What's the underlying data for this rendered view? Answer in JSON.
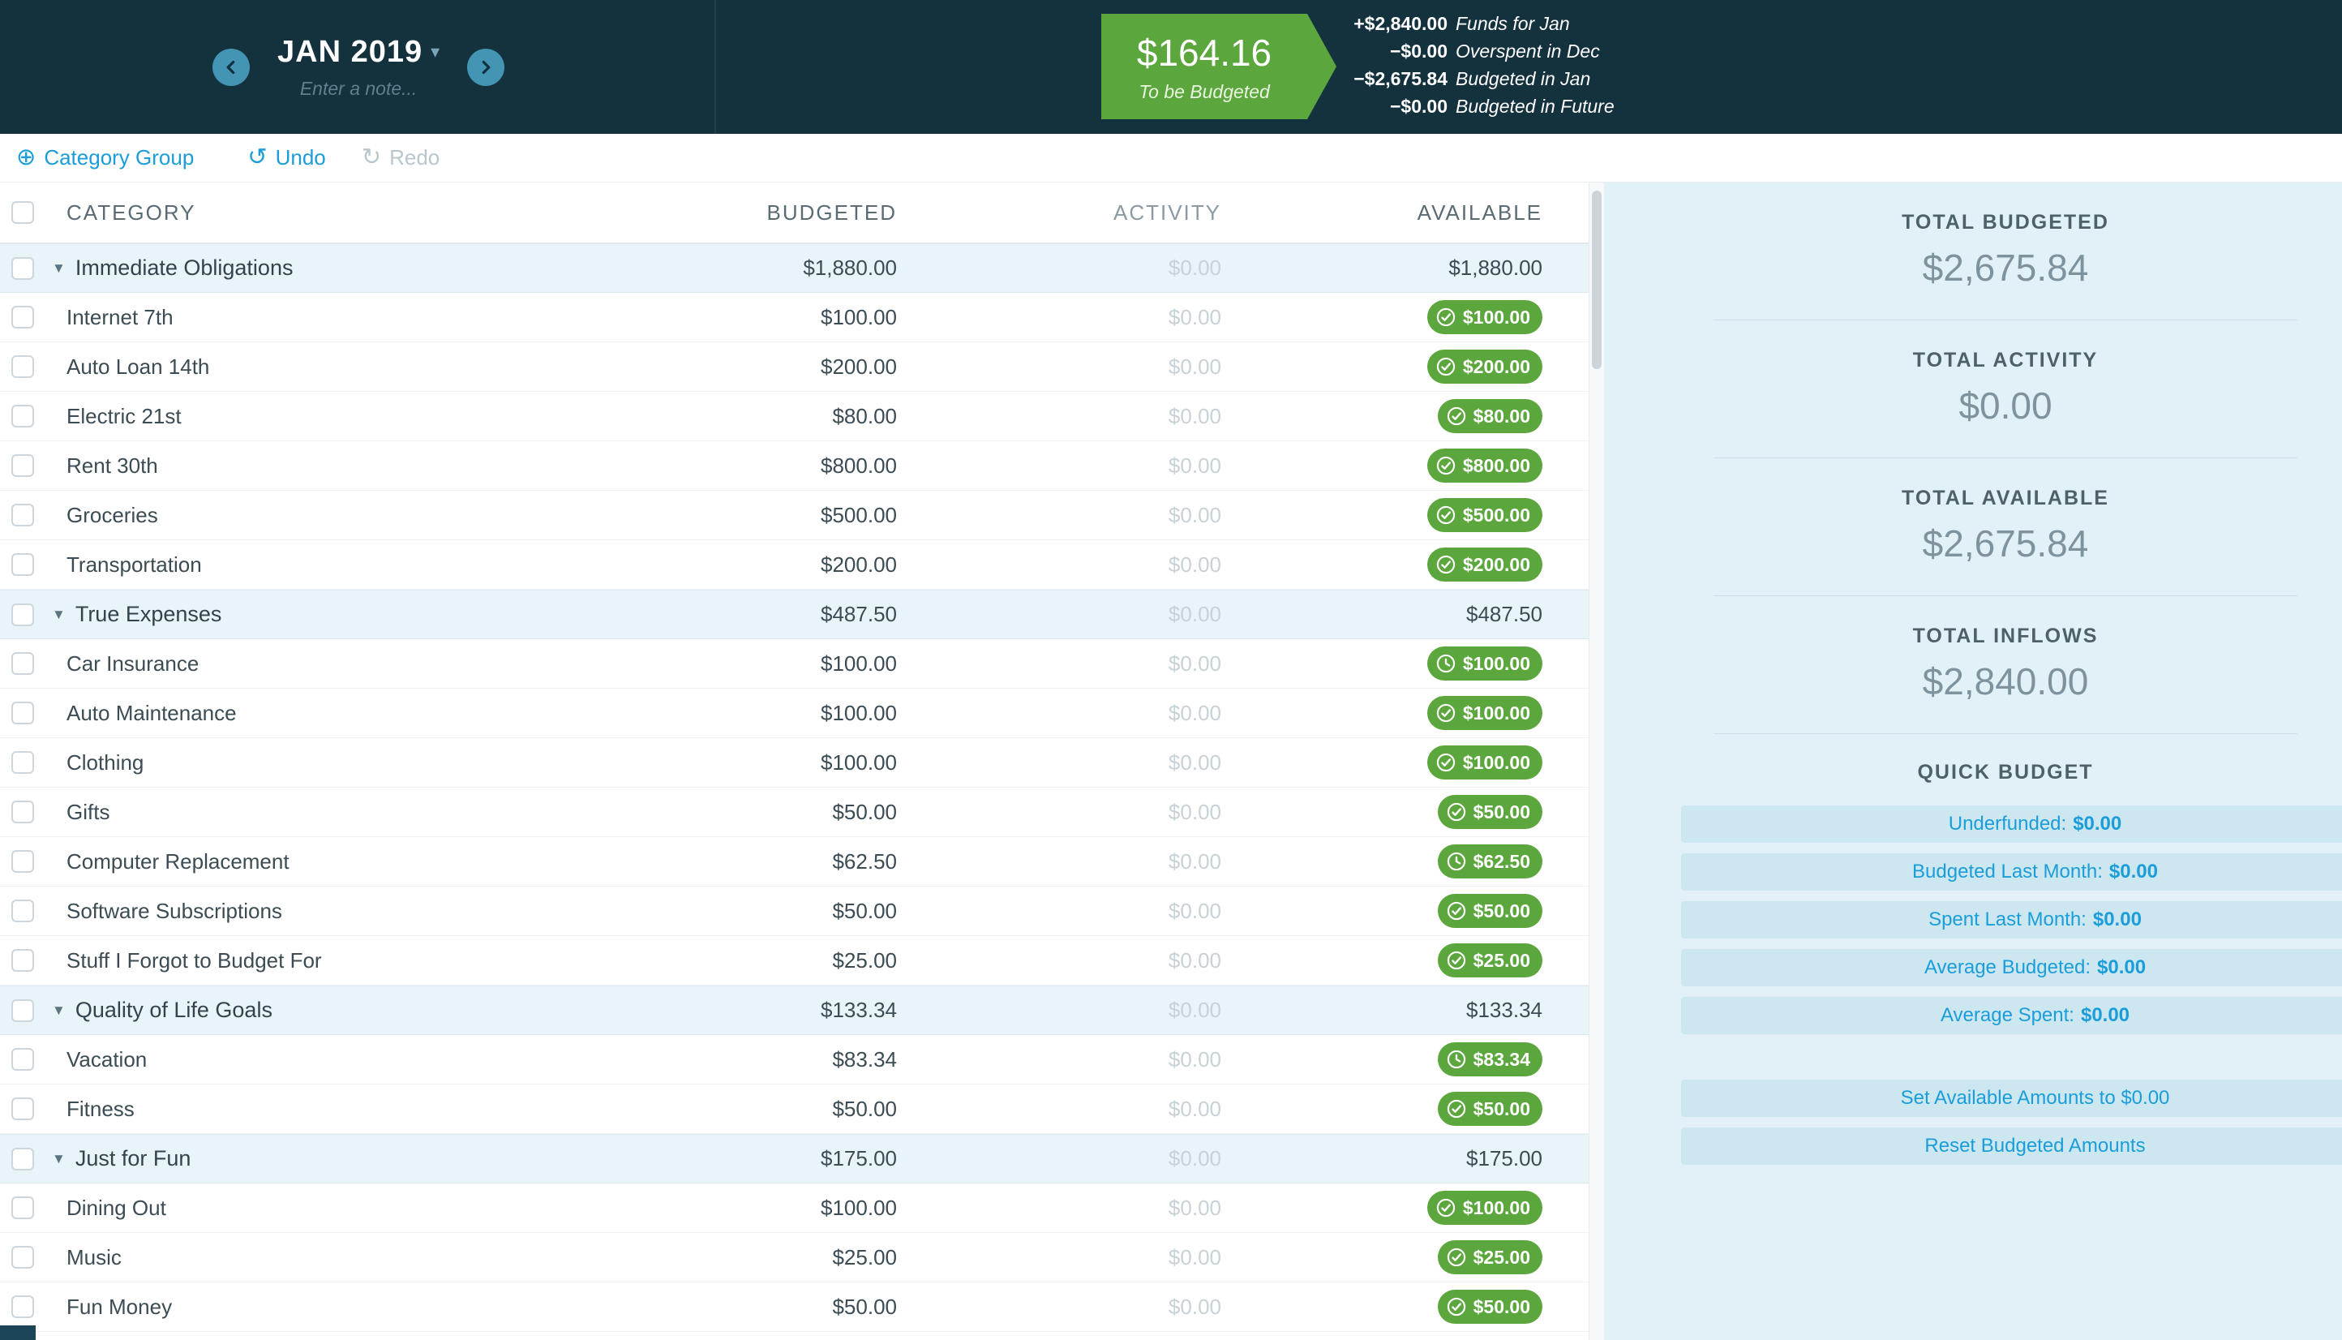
{
  "colors": {
    "header_bg": "#14313e",
    "accent_green": "#5ca73d",
    "accent_blue": "#1b9dd9",
    "sidebar_bg": "#e2f0f7"
  },
  "header": {
    "month": "JAN 2019",
    "note_placeholder": "Enter a note...",
    "tbb": {
      "amount": "$164.16",
      "label": "To be Budgeted"
    },
    "breakdown": [
      {
        "amount": "+$2,840.00",
        "label": "Funds for Jan"
      },
      {
        "amount": "−$0.00",
        "label": "Overspent in Dec"
      },
      {
        "amount": "−$2,675.84",
        "label": "Budgeted in Jan"
      },
      {
        "amount": "−$0.00",
        "label": "Budgeted in Future"
      }
    ]
  },
  "toolbar": {
    "category_group": "Category Group",
    "undo": "Undo",
    "redo": "Redo"
  },
  "table": {
    "headers": {
      "category": "CATEGORY",
      "budgeted": "BUDGETED",
      "activity": "ACTIVITY",
      "available": "AVAILABLE"
    },
    "groups": [
      {
        "name": "Immediate Obligations",
        "budgeted": "$1,880.00",
        "activity": "$0.00",
        "available": "$1,880.00",
        "rows": [
          {
            "name": "Internet 7th",
            "budgeted": "$100.00",
            "activity": "$0.00",
            "available": "$100.00",
            "goal_icon": "check"
          },
          {
            "name": "Auto Loan 14th",
            "budgeted": "$200.00",
            "activity": "$0.00",
            "available": "$200.00",
            "goal_icon": "check"
          },
          {
            "name": "Electric 21st",
            "budgeted": "$80.00",
            "activity": "$0.00",
            "available": "$80.00",
            "goal_icon": "check"
          },
          {
            "name": "Rent 30th",
            "budgeted": "$800.00",
            "activity": "$0.00",
            "available": "$800.00",
            "goal_icon": "check"
          },
          {
            "name": "Groceries",
            "budgeted": "$500.00",
            "activity": "$0.00",
            "available": "$500.00",
            "goal_icon": "check"
          },
          {
            "name": "Transportation",
            "budgeted": "$200.00",
            "activity": "$0.00",
            "available": "$200.00",
            "goal_icon": "check"
          }
        ]
      },
      {
        "name": "True Expenses",
        "budgeted": "$487.50",
        "activity": "$0.00",
        "available": "$487.50",
        "rows": [
          {
            "name": "Car Insurance",
            "budgeted": "$100.00",
            "activity": "$0.00",
            "available": "$100.00",
            "goal_icon": "clock"
          },
          {
            "name": "Auto Maintenance",
            "budgeted": "$100.00",
            "activity": "$0.00",
            "available": "$100.00",
            "goal_icon": "check"
          },
          {
            "name": "Clothing",
            "budgeted": "$100.00",
            "activity": "$0.00",
            "available": "$100.00",
            "goal_icon": "check"
          },
          {
            "name": "Gifts",
            "budgeted": "$50.00",
            "activity": "$0.00",
            "available": "$50.00",
            "goal_icon": "check"
          },
          {
            "name": "Computer Replacement",
            "budgeted": "$62.50",
            "activity": "$0.00",
            "available": "$62.50",
            "goal_icon": "clock"
          },
          {
            "name": "Software Subscriptions",
            "budgeted": "$50.00",
            "activity": "$0.00",
            "available": "$50.00",
            "goal_icon": "check"
          },
          {
            "name": "Stuff I Forgot to Budget For",
            "budgeted": "$25.00",
            "activity": "$0.00",
            "available": "$25.00",
            "goal_icon": "check"
          }
        ]
      },
      {
        "name": "Quality of Life Goals",
        "budgeted": "$133.34",
        "activity": "$0.00",
        "available": "$133.34",
        "rows": [
          {
            "name": "Vacation",
            "budgeted": "$83.34",
            "activity": "$0.00",
            "available": "$83.34",
            "goal_icon": "clock"
          },
          {
            "name": "Fitness",
            "budgeted": "$50.00",
            "activity": "$0.00",
            "available": "$50.00",
            "goal_icon": "check"
          }
        ]
      },
      {
        "name": "Just for Fun",
        "budgeted": "$175.00",
        "activity": "$0.00",
        "available": "$175.00",
        "rows": [
          {
            "name": "Dining Out",
            "budgeted": "$100.00",
            "activity": "$0.00",
            "available": "$100.00",
            "goal_icon": "check"
          },
          {
            "name": "Music",
            "budgeted": "$25.00",
            "activity": "$0.00",
            "available": "$25.00",
            "goal_icon": "check"
          },
          {
            "name": "Fun Money",
            "budgeted": "$50.00",
            "activity": "$0.00",
            "available": "$50.00",
            "goal_icon": "check"
          }
        ]
      }
    ]
  },
  "sidebar": {
    "totals": [
      {
        "label": "TOTAL BUDGETED",
        "value": "$2,675.84"
      },
      {
        "label": "TOTAL ACTIVITY",
        "value": "$0.00"
      },
      {
        "label": "TOTAL AVAILABLE",
        "value": "$2,675.84"
      },
      {
        "label": "TOTAL INFLOWS",
        "value": "$2,840.00"
      }
    ],
    "quick_budget": {
      "title": "QUICK BUDGET",
      "buttons": [
        {
          "label": "Underfunded:",
          "value": "$0.00"
        },
        {
          "label": "Budgeted Last Month:",
          "value": "$0.00"
        },
        {
          "label": "Spent Last Month:",
          "value": "$0.00"
        },
        {
          "label": "Average Budgeted:",
          "value": "$0.00"
        },
        {
          "label": "Average Spent:",
          "value": "$0.00"
        }
      ],
      "actions": [
        {
          "label": "Set Available Amounts to $0.00"
        },
        {
          "label": "Reset Budgeted Amounts"
        }
      ]
    }
  }
}
